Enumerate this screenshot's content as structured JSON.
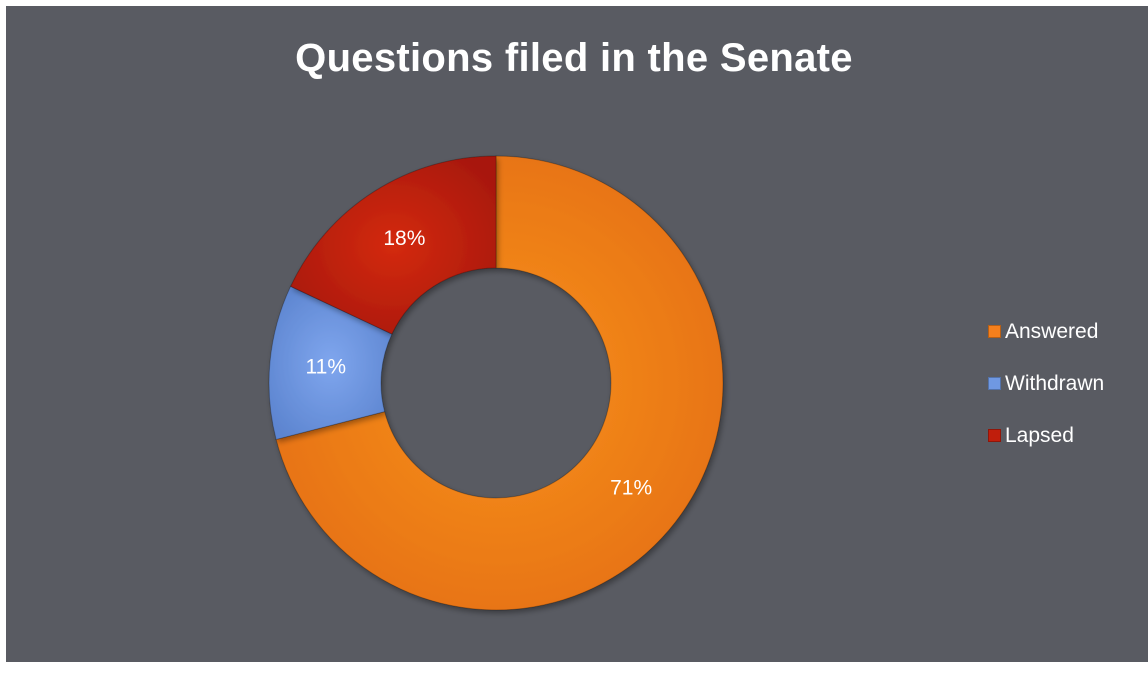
{
  "chart_data": {
    "type": "pie",
    "title": "Questions filed in the Senate",
    "categories": [
      "Answered",
      "Withdrawn",
      "Lapsed"
    ],
    "values": [
      71,
      11,
      18
    ],
    "value_labels": [
      "71%",
      "11%",
      "18%"
    ],
    "colors": [
      "#f47f1c",
      "#6f98e2",
      "#c01e0c"
    ],
    "legend_position": "right",
    "donut": true
  }
}
